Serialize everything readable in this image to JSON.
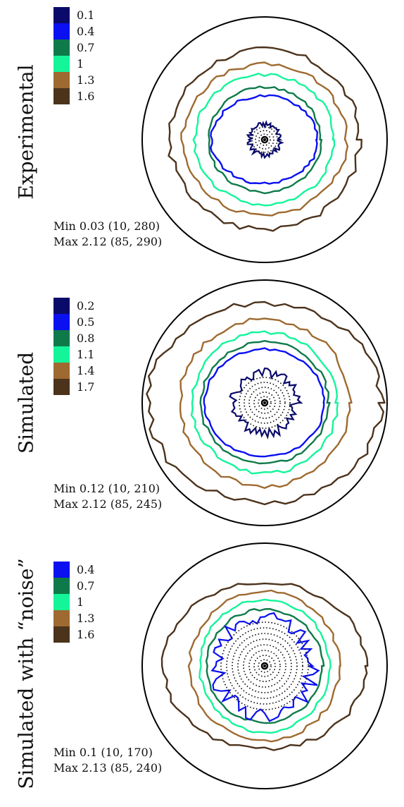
{
  "panels": [
    {
      "title": "Experimental",
      "legend": [
        {
          "label": "0.1",
          "color": "#0a0a6b"
        },
        {
          "label": "0.4",
          "color": "#0a10f0"
        },
        {
          "label": "0.7",
          "color": "#0e7a4a"
        },
        {
          "label": "1",
          "color": "#14f59a"
        },
        {
          "label": "1.3",
          "color": "#9e6a30"
        },
        {
          "label": "1.6",
          "color": "#4c331c"
        }
      ],
      "min_text": "Min 0.03 (10, 280)",
      "max_text": "Max 2.12 (85, 290)"
    },
    {
      "title": "Simulated",
      "legend": [
        {
          "label": "0.2",
          "color": "#0a0a6b"
        },
        {
          "label": "0.5",
          "color": "#0a10f0"
        },
        {
          "label": "0.8",
          "color": "#0e7a4a"
        },
        {
          "label": "1.1",
          "color": "#14f59a"
        },
        {
          "label": "1.4",
          "color": "#9e6a30"
        },
        {
          "label": "1.7",
          "color": "#4c331c"
        }
      ],
      "min_text": "Min 0.12 (10, 210)",
      "max_text": "Max 2.12 (85, 245)"
    },
    {
      "title": "Simulated with “noise”",
      "legend": [
        {
          "label": "0.4",
          "color": "#0a10f0"
        },
        {
          "label": "0.7",
          "color": "#0e7a4a"
        },
        {
          "label": "1",
          "color": "#14f59a"
        },
        {
          "label": "1.3",
          "color": "#9e6a30"
        },
        {
          "label": "1.6",
          "color": "#4c331c"
        }
      ],
      "min_text": "Min 0.1 (10, 170)",
      "max_text": "Max 2.13 (85, 240)"
    }
  ],
  "chart_data": [
    {
      "type": "contour",
      "projection": "polar pole figure",
      "levels": [
        0.1,
        0.4,
        0.7,
        1,
        1.3,
        1.6
      ],
      "min": {
        "value": 0.03,
        "angles": [
          10,
          280
        ]
      },
      "max": {
        "value": 2.12,
        "angles": [
          85,
          290
        ]
      }
    },
    {
      "type": "contour",
      "projection": "polar pole figure",
      "levels": [
        0.2,
        0.5,
        0.8,
        1.1,
        1.4,
        1.7
      ],
      "min": {
        "value": 0.12,
        "angles": [
          10,
          210
        ]
      },
      "max": {
        "value": 2.12,
        "angles": [
          85,
          245
        ]
      }
    },
    {
      "type": "contour",
      "projection": "polar pole figure",
      "levels": [
        0.4,
        0.7,
        1,
        1.3,
        1.6
      ],
      "min": {
        "value": 0.1,
        "angles": [
          10,
          170
        ]
      },
      "max": {
        "value": 2.13,
        "angles": [
          85,
          240
        ]
      }
    }
  ]
}
